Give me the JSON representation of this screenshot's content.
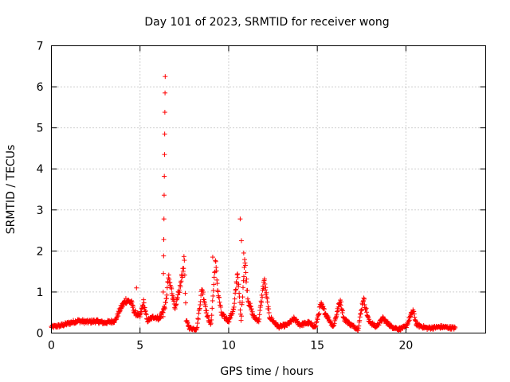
{
  "chart_data": {
    "type": "scatter",
    "title": "Day 101 of 2023, SRMTID for receiver wong",
    "xlabel": "GPS time / hours",
    "ylabel": "SRMTID / TECUs",
    "xlim": [
      0,
      24.5
    ],
    "ylim": [
      0,
      7
    ],
    "xticks": [
      0,
      5,
      10,
      15,
      20
    ],
    "yticks": [
      0,
      1,
      2,
      3,
      4,
      5,
      6,
      7
    ],
    "grid": true,
    "marker": "plus",
    "color": "#ff0000",
    "series": [
      {
        "name": "SRMTID",
        "profile": [
          [
            0.0,
            0.15
          ],
          [
            0.5,
            0.18
          ],
          [
            1.0,
            0.24
          ],
          [
            1.5,
            0.3
          ],
          [
            2.0,
            0.27
          ],
          [
            2.5,
            0.29
          ],
          [
            3.0,
            0.25
          ],
          [
            3.6,
            0.3
          ],
          [
            3.9,
            0.6
          ],
          [
            4.2,
            0.8
          ],
          [
            4.5,
            0.75
          ],
          [
            4.7,
            0.5
          ],
          [
            5.0,
            0.4
          ],
          [
            5.2,
            0.75
          ],
          [
            5.4,
            0.3
          ],
          [
            5.8,
            0.4
          ],
          [
            6.1,
            0.35
          ],
          [
            6.45,
            0.7
          ],
          [
            6.6,
            1.35
          ],
          [
            6.8,
            1.0
          ],
          [
            7.0,
            0.6
          ],
          [
            7.3,
            1.2
          ],
          [
            7.5,
            1.8
          ],
          [
            7.6,
            0.3
          ],
          [
            7.8,
            0.12
          ],
          [
            8.2,
            0.1
          ],
          [
            8.5,
            1.1
          ],
          [
            8.8,
            0.4
          ],
          [
            9.0,
            0.2
          ],
          [
            9.25,
            1.75
          ],
          [
            9.4,
            1.0
          ],
          [
            9.6,
            0.45
          ],
          [
            10.0,
            0.3
          ],
          [
            10.3,
            0.6
          ],
          [
            10.5,
            1.5
          ],
          [
            10.7,
            0.3
          ],
          [
            10.9,
            1.8
          ],
          [
            11.1,
            0.8
          ],
          [
            11.4,
            0.4
          ],
          [
            11.7,
            0.3
          ],
          [
            12.0,
            1.3
          ],
          [
            12.3,
            0.4
          ],
          [
            12.8,
            0.15
          ],
          [
            13.3,
            0.2
          ],
          [
            13.7,
            0.35
          ],
          [
            14.0,
            0.2
          ],
          [
            14.5,
            0.25
          ],
          [
            14.9,
            0.15
          ],
          [
            15.2,
            0.7
          ],
          [
            15.5,
            0.45
          ],
          [
            15.9,
            0.15
          ],
          [
            16.3,
            0.8
          ],
          [
            16.5,
            0.35
          ],
          [
            16.9,
            0.2
          ],
          [
            17.3,
            0.1
          ],
          [
            17.6,
            0.85
          ],
          [
            17.9,
            0.3
          ],
          [
            18.3,
            0.15
          ],
          [
            18.7,
            0.35
          ],
          [
            19.2,
            0.15
          ],
          [
            19.6,
            0.1
          ],
          [
            20.0,
            0.15
          ],
          [
            20.4,
            0.55
          ],
          [
            20.6,
            0.2
          ],
          [
            21.2,
            0.12
          ],
          [
            22.0,
            0.15
          ],
          [
            22.8,
            0.12
          ]
        ],
        "spike": [
          [
            6.3,
            0.4
          ],
          [
            6.31,
            1.0
          ],
          [
            6.32,
            1.45
          ],
          [
            6.33,
            1.88
          ],
          [
            6.34,
            2.28
          ],
          [
            6.35,
            2.78
          ],
          [
            6.36,
            3.36
          ],
          [
            6.37,
            3.82
          ],
          [
            6.38,
            4.35
          ],
          [
            6.39,
            4.85
          ],
          [
            6.4,
            5.38
          ],
          [
            6.41,
            5.85
          ],
          [
            6.42,
            6.25
          ]
        ],
        "extra_points": [
          [
            10.65,
            2.78
          ],
          [
            10.72,
            2.25
          ],
          [
            10.85,
            1.95
          ],
          [
            4.8,
            1.1
          ],
          [
            9.1,
            1.85
          ]
        ]
      }
    ]
  }
}
